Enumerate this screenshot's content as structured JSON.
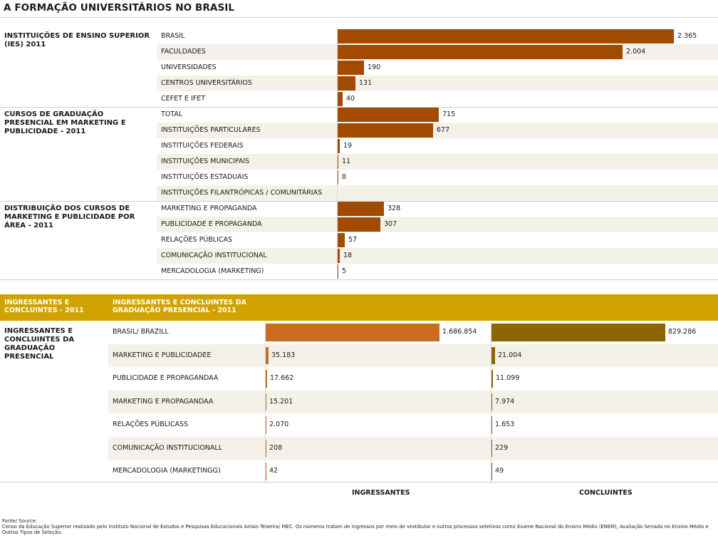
{
  "title": "A FORMAÇÃO UNIVERSITÁRIOS NO BRASIL",
  "chart_data": [
    {
      "type": "bar",
      "title": "INSTITUIÇÕES DE ENSINO SUPERIOR (IES) 2011",
      "categories": [
        "BRASIL",
        "FACULDADES",
        "UNIVERSIDADES",
        "CENTROS UNIVERSITÁRIOS",
        "CEFET E IFET"
      ],
      "values": [
        2365,
        2004,
        190,
        131,
        40
      ],
      "value_labels": [
        "2.365",
        "2.004",
        "190",
        "131",
        "40"
      ]
    },
    {
      "type": "bar",
      "title": "CURSOS DE GRADUAÇÃO PRESENCIAL EM MARKETING E PUBLICIDADE - 2011",
      "categories": [
        "TOTAL",
        "INSTITUIÇÕES PARTICULARES",
        "INSTITUIÇÕES FEDERAIS",
        "INSTITUIÇÕES MUNICIPAIS",
        "INSTITUIÇÕES ESTADUAIS",
        "INSTITUIÇÕES FILANTRÓPICAS / COMUNITÁRIAS"
      ],
      "values": [
        715,
        677,
        19,
        11,
        8,
        null
      ],
      "value_labels": [
        "715",
        "677",
        "19",
        "11",
        "8",
        ""
      ]
    },
    {
      "type": "bar",
      "title": "DISTRIBUIÇÃO DOS CURSOS DE MARKETING E PUBLICIDADE POR ÁREA - 2011",
      "categories": [
        "MARKETING E PROPAGANDA",
        "PUBLICIDADE E PROPAGANDA",
        "RELAÇÕES PÚBLICAS",
        "COMUNICAÇÃO INSTITUCIONAL",
        "MERCADOLOGIA (MARKETING)"
      ],
      "values": [
        328,
        307,
        57,
        18,
        5
      ],
      "value_labels": [
        "328",
        "307",
        "57",
        "18",
        "5"
      ]
    },
    {
      "type": "bar",
      "header_left": "INGRESSANTES E CONCLUINTES - 2011",
      "header_right": "INGRESSANTES E CONCLUINTES DA GRADUAÇÃO PRESENCIAL - 2011",
      "title": "INGRESSANTES E CONCLUINTES DA GRADUAÇÃO PRESENCIAL",
      "categories": [
        "BRASIL/ BRAZILL",
        "MARKETING E PUBLICIDADEE",
        "PUBLICIDADE E PROPAGANDAA",
        "MARKETING E PROPAGANDAA",
        "RELAÇÕES PÚBLICASS",
        "COMUNICAÇÃO INSTITUCIONALL",
        "MERCADOLOGIA (MARKETINGG)"
      ],
      "series": [
        {
          "name": "INGRESSANTES",
          "color": "#cc6c21",
          "values": [
            1686854,
            35183,
            17662,
            15201,
            2070,
            208,
            42
          ],
          "value_labels": [
            "1.686.854",
            "35.183",
            "17.662",
            "15.201",
            "2.070",
            "208",
            "42"
          ]
        },
        {
          "name": "CONCLUINTES",
          "color": "#8c6400",
          "values": [
            829286,
            21004,
            11099,
            7974,
            1653,
            229,
            49
          ],
          "value_labels": [
            "829.286",
            "21.004",
            "11.099",
            "7.974",
            "1.653",
            "229",
            "49"
          ]
        }
      ]
    }
  ],
  "footnote_label": "Fonte/ Source:",
  "footnote_text": "Censo da Educação Superior realizado pelo Instituto Nacional de Estudos e Pesquisas Educacionais Anísio Teixeira/ MEC. Os números tratam de ingressos por meio de vestibular e outros processos seletivos como Exame Nacional do Ensino Médio (ENEM), Avaliação Seriada no Ensino Médio e Outros Tipos de Seleção."
}
